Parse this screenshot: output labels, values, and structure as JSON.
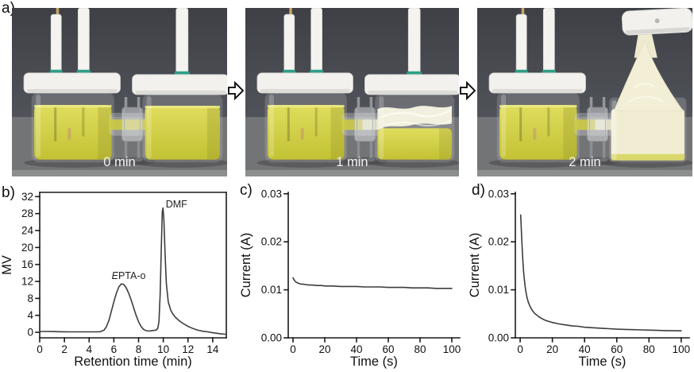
{
  "panels": {
    "a": {
      "label": "a)",
      "photos": [
        {
          "caption": "0 min",
          "description": "H-cell, yellow solution in both chambers"
        },
        {
          "caption": "1 min",
          "description": "white foam forming in right chamber"
        },
        {
          "caption": "2 min",
          "description": "foam overflowing right chamber and lifting cap"
        }
      ]
    },
    "b": {
      "label": "b)"
    },
    "c": {
      "label": "c)"
    },
    "d": {
      "label": "d)"
    }
  },
  "colors": {
    "curve": "#3d3d3d",
    "axis": "#1a1a1a",
    "solution_yellow": "#d6d23e",
    "foam_cream": "#f1eed4",
    "photo_wall": "#43454b",
    "photo_bench": "#737476",
    "cap_white": "#f2f1ee",
    "seal_green": "#2e9f85",
    "caption_text": "#f2f2f2"
  },
  "chart_data": [
    {
      "id": "b",
      "type": "line",
      "title": "",
      "xlabel": "Retention time (min)",
      "ylabel": "MV",
      "xlim": [
        0,
        15.1
      ],
      "ylim": [
        -1.3,
        33.0
      ],
      "xticks": [
        0,
        2,
        4,
        6,
        8,
        10,
        12,
        14
      ],
      "yticks": [
        0,
        4,
        8,
        12,
        16,
        20,
        24,
        28,
        32
      ],
      "box": true,
      "grid": false,
      "legend": "none",
      "annotations": [
        {
          "italic_prefix": "E",
          "text": "PTA-o",
          "x": 7.2,
          "y": 12.6,
          "anchor": "middle"
        },
        {
          "italic_prefix": "",
          "text": "DMF",
          "x": 10.2,
          "y": 29.4,
          "anchor": "start"
        }
      ],
      "series": [
        {
          "name": "GPC trace",
          "x": [
            0,
            0.5,
            1,
            1.5,
            2,
            2.5,
            3,
            3.5,
            4,
            4.5,
            4.9,
            5.2,
            5.4,
            5.6,
            5.8,
            6.0,
            6.2,
            6.4,
            6.6,
            6.8,
            7.0,
            7.2,
            7.4,
            7.6,
            7.8,
            8.0,
            8.2,
            8.4,
            8.6,
            8.8,
            9.0,
            9.2,
            9.4,
            9.55,
            9.65,
            9.75,
            9.85,
            9.92,
            9.98,
            10.05,
            10.15,
            10.25,
            10.4,
            10.6,
            10.8,
            11.0,
            11.3,
            11.6,
            12.0,
            12.4,
            12.8,
            13.2,
            13.6,
            14.0,
            14.5,
            15.0
          ],
          "y": [
            0.2,
            0.2,
            0.18,
            0.15,
            0.12,
            0.1,
            0.1,
            0.1,
            0.1,
            0.1,
            0.15,
            0.5,
            1.3,
            2.8,
            5.0,
            7.2,
            9.2,
            10.7,
            11.4,
            11.3,
            10.5,
            9.2,
            7.6,
            5.8,
            4.0,
            2.5,
            1.4,
            0.7,
            0.4,
            0.3,
            0.35,
            0.45,
            0.5,
            0.9,
            2.5,
            9.0,
            21.0,
            28.5,
            29.3,
            26.5,
            18.0,
            11.5,
            7.2,
            5.2,
            4.2,
            3.5,
            2.7,
            2.1,
            1.4,
            0.9,
            0.5,
            0.25,
            0.1,
            -0.1,
            -0.3,
            -0.45
          ]
        }
      ]
    },
    {
      "id": "c",
      "type": "line",
      "title": "",
      "xlabel": "Time (s)",
      "ylabel": "Current (A)",
      "xlim": [
        -3,
        105
      ],
      "ylim": [
        0,
        0.0303
      ],
      "xticks": [
        0,
        20,
        40,
        60,
        80,
        100
      ],
      "yticks": [
        0,
        0.01,
        0.02,
        0.03
      ],
      "ytick_labels": [
        "0.00",
        "0.01",
        "0.02",
        "0.03"
      ],
      "box": false,
      "grid": false,
      "legend": "none",
      "annotations": [],
      "series": [
        {
          "name": "chronoamperometry steady",
          "x": [
            0,
            0.5,
            1,
            1.5,
            2,
            3,
            4,
            5,
            6,
            8,
            10,
            12,
            15,
            18,
            20,
            25,
            30,
            35,
            40,
            45,
            50,
            55,
            60,
            65,
            70,
            75,
            80,
            85,
            90,
            95,
            100
          ],
          "y": [
            0.0125,
            0.0122,
            0.0119,
            0.0117,
            0.0116,
            0.0114,
            0.0113,
            0.0112,
            0.0112,
            0.0111,
            0.011,
            0.011,
            0.0109,
            0.0109,
            0.0108,
            0.0108,
            0.0107,
            0.0107,
            0.0107,
            0.0106,
            0.0106,
            0.0106,
            0.0105,
            0.0105,
            0.0105,
            0.0104,
            0.0104,
            0.0104,
            0.0103,
            0.0103,
            0.0103
          ]
        }
      ]
    },
    {
      "id": "d",
      "type": "line",
      "title": "",
      "xlabel": "Time (s)",
      "ylabel": "Current (A)",
      "xlim": [
        -3,
        105
      ],
      "ylim": [
        0,
        0.0303
      ],
      "xticks": [
        0,
        20,
        40,
        60,
        80,
        100
      ],
      "yticks": [
        0,
        0.01,
        0.02,
        0.03
      ],
      "ytick_labels": [
        "0.00",
        "0.01",
        "0.02",
        "0.03"
      ],
      "box": false,
      "grid": false,
      "legend": "none",
      "annotations": [],
      "series": [
        {
          "name": "chronoamperometry decay",
          "x": [
            0.3,
            0.6,
            1,
            1.4,
            1.8,
            2.2,
            2.6,
            3,
            3.5,
            4,
            4.5,
            5,
            6,
            7,
            8,
            9,
            10,
            12,
            14,
            16,
            18,
            20,
            24,
            28,
            32,
            36,
            40,
            45,
            50,
            55,
            60,
            65,
            70,
            75,
            80,
            85,
            90,
            95,
            100
          ],
          "y": [
            0.0256,
            0.0235,
            0.0205,
            0.0178,
            0.0155,
            0.0136,
            0.0121,
            0.0109,
            0.0097,
            0.0088,
            0.0081,
            0.0075,
            0.0066,
            0.006,
            0.0055,
            0.0051,
            0.0048,
            0.0043,
            0.0039,
            0.0036,
            0.0034,
            0.0032,
            0.0029,
            0.0027,
            0.0025,
            0.0024,
            0.0022,
            0.0021,
            0.002,
            0.0019,
            0.0018,
            0.00175,
            0.0017,
            0.00165,
            0.0016,
            0.00155,
            0.0015,
            0.00148,
            0.00145
          ]
        }
      ]
    }
  ]
}
